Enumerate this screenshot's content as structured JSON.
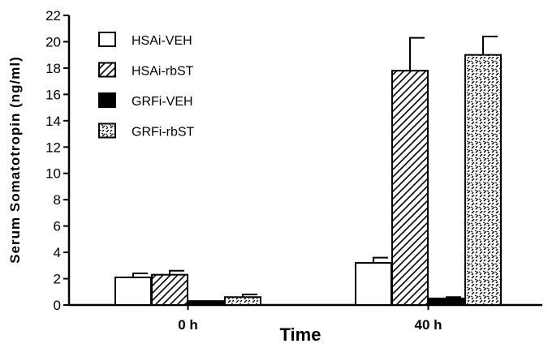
{
  "chart_data": {
    "type": "bar",
    "xlabel": "Time",
    "ylabel": "Serum  Somatotropin  (ng/ml)",
    "ylim": [
      0,
      22
    ],
    "yticks": [
      0,
      2,
      4,
      6,
      8,
      10,
      12,
      14,
      16,
      18,
      20,
      22
    ],
    "categories": [
      "0 h",
      "40 h"
    ],
    "legend_position": "top-left",
    "series": [
      {
        "name": "HSAi-VEH",
        "pattern": "white",
        "values": [
          2.1,
          3.2
        ],
        "errors": [
          0.3,
          0.4
        ]
      },
      {
        "name": "HSAi-rbST",
        "pattern": "diagonal",
        "values": [
          2.3,
          17.8
        ],
        "errors": [
          0.3,
          2.5
        ]
      },
      {
        "name": "GRFi-VEH",
        "pattern": "black",
        "values": [
          0.3,
          0.5
        ],
        "errors": [
          0.0,
          0.1
        ]
      },
      {
        "name": "GRFi-rbST",
        "pattern": "dashes",
        "values": [
          0.6,
          19.0
        ],
        "errors": [
          0.2,
          1.4
        ]
      }
    ]
  }
}
